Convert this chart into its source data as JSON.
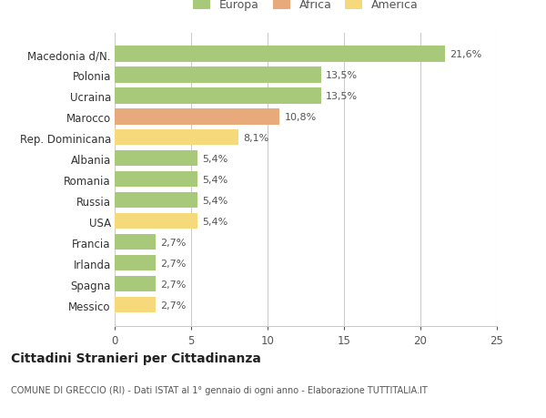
{
  "categories": [
    "Messico",
    "Spagna",
    "Irlanda",
    "Francia",
    "USA",
    "Russia",
    "Romania",
    "Albania",
    "Rep. Dominicana",
    "Marocco",
    "Ucraina",
    "Polonia",
    "Macedonia d/N."
  ],
  "values": [
    2.7,
    2.7,
    2.7,
    2.7,
    5.4,
    5.4,
    5.4,
    5.4,
    8.1,
    10.8,
    13.5,
    13.5,
    21.6
  ],
  "labels": [
    "2,7%",
    "2,7%",
    "2,7%",
    "2,7%",
    "5,4%",
    "5,4%",
    "5,4%",
    "5,4%",
    "8,1%",
    "10,8%",
    "13,5%",
    "13,5%",
    "21,6%"
  ],
  "colors": [
    "#f5d97a",
    "#a8c87a",
    "#a8c87a",
    "#a8c87a",
    "#f5d97a",
    "#a8c87a",
    "#a8c87a",
    "#a8c87a",
    "#f5d97a",
    "#e8aa7a",
    "#a8c87a",
    "#a8c87a",
    "#a8c87a"
  ],
  "legend_labels": [
    "Europa",
    "Africa",
    "America"
  ],
  "legend_colors": [
    "#a8c87a",
    "#e8aa7a",
    "#f5d97a"
  ],
  "title": "Cittadini Stranieri per Cittadinanza",
  "subtitle": "COMUNE DI GRECCIO (RI) - Dati ISTAT al 1° gennaio di ogni anno - Elaborazione TUTTITALIA.IT",
  "xlim": [
    0,
    25
  ],
  "xticks": [
    0,
    5,
    10,
    15,
    20,
    25
  ],
  "bg_color": "#ffffff",
  "grid_color": "#cccccc"
}
